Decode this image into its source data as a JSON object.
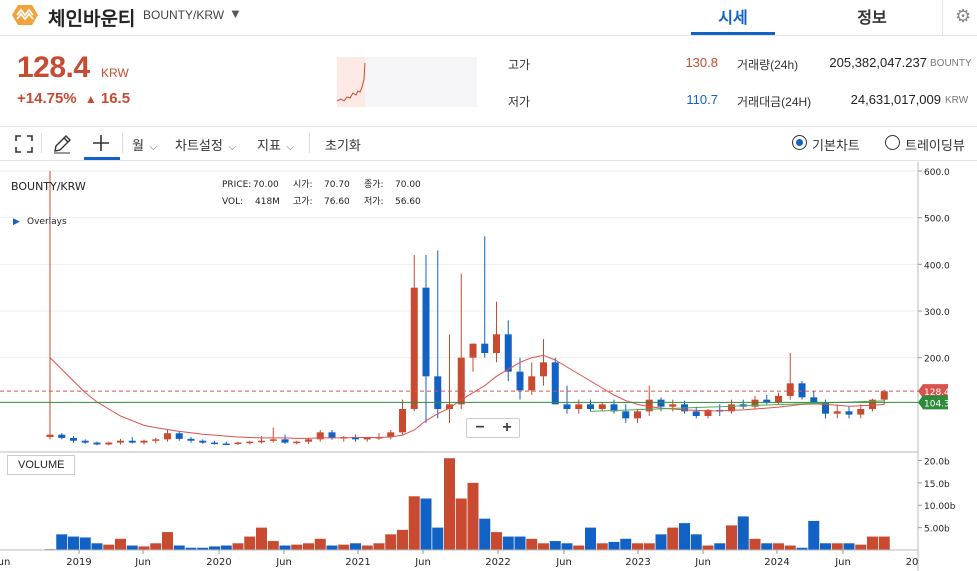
{
  "header": {
    "coin_name": "체인바운티",
    "pair": "BOUNTY/KRW",
    "tabs": [
      "시세",
      "정보"
    ]
  },
  "ticker": {
    "price": "128.4",
    "unit": "KRW",
    "change_pct": "+14.75%",
    "change_arrow": "▲",
    "change_abs": "16.5",
    "high_label": "고가",
    "high": "130.8",
    "low_label": "저가",
    "low": "110.7",
    "volume_label": "거래량(24h)",
    "volume": "205,382,047.237",
    "volume_unit": "BOUNTY",
    "value_label": "거래대금(24H)",
    "value": "24,631,017,009",
    "value_unit": "KRW"
  },
  "toolbar": {
    "interval": "월",
    "chart_settings": "차트설정",
    "indicators": "지표",
    "reset": "초기화",
    "basic_chart": "기본차트",
    "tradingview": "트레이딩뷰"
  },
  "chart_data": {
    "type": "candlestick",
    "symbol": "BOUNTY/KRW",
    "overlays_label": "Overlays",
    "legend": {
      "price_label": "PRICE:",
      "price": "70.00",
      "vol_label": "VOL:",
      "vol": "418M",
      "open_label": "시가:",
      "open": "70.70",
      "high_label": "고가:",
      "high": "76.60",
      "close_label": "종가:",
      "close": "70.00",
      "low_label": "저가:",
      "low": "56.60"
    },
    "ylim": [
      0,
      600
    ],
    "y_ticks": [
      "600.0",
      "500.0",
      "400.0",
      "300.0",
      "200.0"
    ],
    "x_ticks": [
      "un",
      "2019",
      "Jun",
      "2020",
      "Jun",
      "2021",
      "Jun",
      "2022",
      "Jun",
      "2023",
      "Jun",
      "2024",
      "Jun",
      "20"
    ],
    "current_price_label": "128.4",
    "ma_label": "104.3",
    "volume_label": "VOLUME",
    "volume_ticks": [
      "20.0b",
      "15.0b",
      "10.00b",
      "5.00b"
    ],
    "colors": {
      "up": "#c84a31",
      "down": "#1261c4",
      "ma": "#e05050",
      "ma2": "#4caf50"
    },
    "candles": [
      {
        "o": 30,
        "h": 600,
        "l": 25,
        "c": 35
      },
      {
        "o": 35,
        "h": 38,
        "l": 25,
        "c": 28
      },
      {
        "o": 28,
        "h": 32,
        "l": 18,
        "c": 22
      },
      {
        "o": 22,
        "h": 25,
        "l": 15,
        "c": 18
      },
      {
        "o": 18,
        "h": 20,
        "l": 12,
        "c": 14
      },
      {
        "o": 14,
        "h": 20,
        "l": 12,
        "c": 18
      },
      {
        "o": 18,
        "h": 26,
        "l": 14,
        "c": 22
      },
      {
        "o": 22,
        "h": 30,
        "l": 16,
        "c": 18
      },
      {
        "o": 18,
        "h": 24,
        "l": 14,
        "c": 22
      },
      {
        "o": 22,
        "h": 28,
        "l": 16,
        "c": 25
      },
      {
        "o": 25,
        "h": 45,
        "l": 20,
        "c": 38
      },
      {
        "o": 38,
        "h": 42,
        "l": 22,
        "c": 26
      },
      {
        "o": 26,
        "h": 30,
        "l": 18,
        "c": 22
      },
      {
        "o": 22,
        "h": 25,
        "l": 15,
        "c": 18
      },
      {
        "o": 18,
        "h": 22,
        "l": 14,
        "c": 16
      },
      {
        "o": 16,
        "h": 20,
        "l": 13,
        "c": 15
      },
      {
        "o": 15,
        "h": 20,
        "l": 13,
        "c": 18
      },
      {
        "o": 18,
        "h": 22,
        "l": 14,
        "c": 20
      },
      {
        "o": 20,
        "h": 32,
        "l": 16,
        "c": 22
      },
      {
        "o": 22,
        "h": 50,
        "l": 18,
        "c": 25
      },
      {
        "o": 25,
        "h": 35,
        "l": 15,
        "c": 18
      },
      {
        "o": 18,
        "h": 22,
        "l": 14,
        "c": 20
      },
      {
        "o": 20,
        "h": 28,
        "l": 15,
        "c": 25
      },
      {
        "o": 25,
        "h": 45,
        "l": 20,
        "c": 40
      },
      {
        "o": 40,
        "h": 45,
        "l": 24,
        "c": 28
      },
      {
        "o": 28,
        "h": 32,
        "l": 20,
        "c": 30
      },
      {
        "o": 30,
        "h": 35,
        "l": 20,
        "c": 25
      },
      {
        "o": 25,
        "h": 30,
        "l": 20,
        "c": 28
      },
      {
        "o": 28,
        "h": 38,
        "l": 24,
        "c": 30
      },
      {
        "o": 30,
        "h": 45,
        "l": 25,
        "c": 40
      },
      {
        "o": 40,
        "h": 110,
        "l": 35,
        "c": 90
      },
      {
        "o": 90,
        "h": 420,
        "l": 85,
        "c": 350
      },
      {
        "o": 350,
        "h": 420,
        "l": 60,
        "c": 160
      },
      {
        "o": 160,
        "h": 430,
        "l": 70,
        "c": 90
      },
      {
        "o": 90,
        "h": 250,
        "l": 60,
        "c": 100
      },
      {
        "o": 100,
        "h": 380,
        "l": 90,
        "c": 200
      },
      {
        "o": 200,
        "h": 230,
        "l": 170,
        "c": 230
      },
      {
        "o": 230,
        "h": 460,
        "l": 200,
        "c": 210
      },
      {
        "o": 210,
        "h": 320,
        "l": 190,
        "c": 250
      },
      {
        "o": 250,
        "h": 280,
        "l": 150,
        "c": 170
      },
      {
        "o": 170,
        "h": 200,
        "l": 110,
        "c": 130
      },
      {
        "o": 130,
        "h": 190,
        "l": 120,
        "c": 160
      },
      {
        "o": 160,
        "h": 240,
        "l": 140,
        "c": 190
      },
      {
        "o": 190,
        "h": 200,
        "l": 100,
        "c": 100
      },
      {
        "o": 100,
        "h": 140,
        "l": 80,
        "c": 90
      },
      {
        "o": 90,
        "h": 110,
        "l": 80,
        "c": 100
      },
      {
        "o": 100,
        "h": 110,
        "l": 85,
        "c": 90
      },
      {
        "o": 90,
        "h": 105,
        "l": 85,
        "c": 100
      },
      {
        "o": 100,
        "h": 110,
        "l": 80,
        "c": 85
      },
      {
        "o": 85,
        "h": 100,
        "l": 60,
        "c": 70
      },
      {
        "o": 70,
        "h": 90,
        "l": 60,
        "c": 85
      },
      {
        "o": 85,
        "h": 140,
        "l": 75,
        "c": 110
      },
      {
        "o": 110,
        "h": 115,
        "l": 85,
        "c": 95
      },
      {
        "o": 95,
        "h": 110,
        "l": 85,
        "c": 100
      },
      {
        "o": 100,
        "h": 108,
        "l": 80,
        "c": 85
      },
      {
        "o": 85,
        "h": 95,
        "l": 70,
        "c": 75
      },
      {
        "o": 75,
        "h": 90,
        "l": 70,
        "c": 88
      },
      {
        "o": 88,
        "h": 100,
        "l": 75,
        "c": 85
      },
      {
        "o": 85,
        "h": 110,
        "l": 80,
        "c": 100
      },
      {
        "o": 100,
        "h": 110,
        "l": 90,
        "c": 95
      },
      {
        "o": 95,
        "h": 118,
        "l": 90,
        "c": 110
      },
      {
        "o": 110,
        "h": 120,
        "l": 100,
        "c": 105
      },
      {
        "o": 105,
        "h": 125,
        "l": 100,
        "c": 118
      },
      {
        "o": 118,
        "h": 210,
        "l": 110,
        "c": 145
      },
      {
        "o": 145,
        "h": 150,
        "l": 110,
        "c": 115
      },
      {
        "o": 115,
        "h": 128,
        "l": 100,
        "c": 105
      },
      {
        "o": 105,
        "h": 110,
        "l": 70,
        "c": 80
      },
      {
        "o": 80,
        "h": 100,
        "l": 70,
        "c": 85
      },
      {
        "o": 85,
        "h": 95,
        "l": 70,
        "c": 78
      },
      {
        "o": 78,
        "h": 100,
        "l": 70,
        "c": 90
      },
      {
        "o": 90,
        "h": 112,
        "l": 85,
        "c": 110
      },
      {
        "o": 110,
        "h": 131,
        "l": 100,
        "c": 128
      }
    ],
    "ma": [
      200,
      175,
      150,
      125,
      105,
      90,
      75,
      65,
      55,
      50,
      46,
      42,
      39,
      36,
      34,
      32,
      30,
      29,
      28,
      28,
      28,
      27,
      27,
      28,
      28,
      28,
      29,
      29,
      29,
      30,
      34,
      45,
      65,
      80,
      92,
      110,
      125,
      140,
      160,
      175,
      190,
      200,
      205,
      195,
      180,
      165,
      150,
      135,
      120,
      108,
      100,
      95,
      92,
      90,
      88,
      87,
      86,
      86,
      87,
      88,
      90,
      92,
      94,
      97,
      100,
      101,
      100,
      98,
      96,
      97,
      98,
      100
    ],
    "volume_bil": [
      0.2,
      3.5,
      3.0,
      2.8,
      1.5,
      1.2,
      2.5,
      1.0,
      0.8,
      1.5,
      4.0,
      1.0,
      0.5,
      0.5,
      0.8,
      1.0,
      1.5,
      3.0,
      5.0,
      2.0,
      1.0,
      1.2,
      1.5,
      2.5,
      1.0,
      1.2,
      1.5,
      1.0,
      1.5,
      3.5,
      4.5,
      12.0,
      11.5,
      5.0,
      20.5,
      11.5,
      15.0,
      7.0,
      4.0,
      3.0,
      3.0,
      2.5,
      1.5,
      2.0,
      1.5,
      1.0,
      5.0,
      1.5,
      1.8,
      2.5,
      1.5,
      1.5,
      3.5,
      5.0,
      6.0,
      3.5,
      1.0,
      1.5,
      5.5,
      7.5,
      2.5,
      1.5,
      1.5,
      1.0,
      0.5,
      6.5,
      1.5,
      1.5,
      1.5,
      1.2,
      3.0,
      3.0
    ]
  }
}
